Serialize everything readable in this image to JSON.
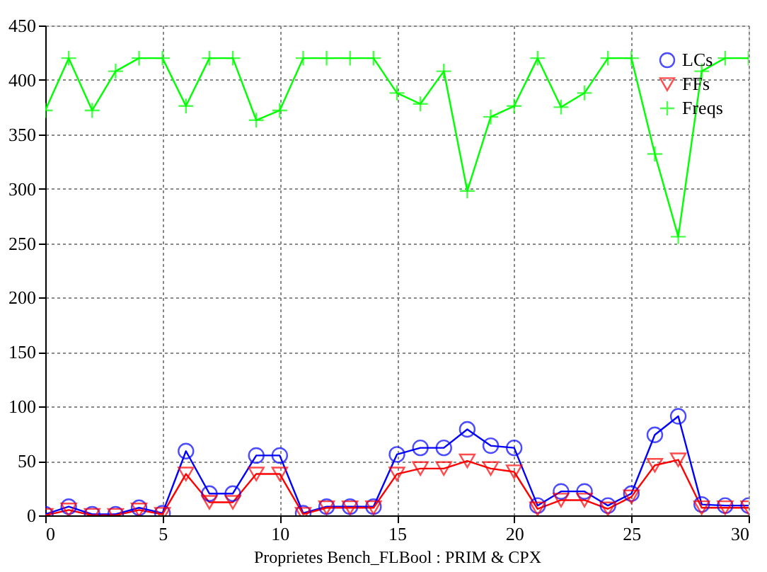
{
  "chart_data": {
    "type": "line",
    "xlabel": "Proprietes Bench_FLBool : PRIM & CPX",
    "x": [
      0,
      1,
      2,
      3,
      4,
      5,
      6,
      7,
      8,
      9,
      10,
      11,
      12,
      13,
      14,
      15,
      16,
      17,
      18,
      19,
      20,
      21,
      22,
      23,
      24,
      25,
      26,
      27,
      28,
      29,
      30
    ],
    "series": [
      {
        "name": "LCs",
        "color": "#0000ff",
        "marker": "circle",
        "values": [
          1,
          8,
          1,
          1,
          7,
          2,
          59,
          20,
          20,
          55,
          55,
          2,
          8,
          8,
          8,
          56,
          62,
          62,
          79,
          64,
          62,
          9,
          22,
          22,
          9,
          20,
          74,
          91,
          10,
          9,
          9
        ]
      },
      {
        "name": "FFs",
        "color": "#ff0000",
        "marker": "triangle",
        "values": [
          0,
          5,
          0,
          0,
          5,
          1,
          38,
          12,
          12,
          38,
          38,
          1,
          7,
          7,
          7,
          38,
          43,
          43,
          50,
          43,
          40,
          6,
          14,
          14,
          6,
          17,
          46,
          51,
          7,
          7,
          7
        ]
      },
      {
        "name": "Freqs",
        "color": "#00ff00",
        "marker": "cross",
        "values": [
          372,
          420,
          372,
          408,
          420,
          420,
          376,
          420,
          420,
          363,
          372,
          420,
          420,
          420,
          420,
          388,
          378,
          408,
          298,
          366,
          376,
          420,
          375,
          388,
          420,
          420,
          332,
          256,
          408,
          420,
          420
        ]
      }
    ],
    "xlim": [
      0,
      30
    ],
    "ylim": [
      0,
      450
    ],
    "xticks": [
      0,
      5,
      10,
      15,
      20,
      25,
      30
    ],
    "yticks": [
      0,
      50,
      100,
      150,
      200,
      250,
      300,
      350,
      400,
      450
    ],
    "grid": true,
    "legend": "top right",
    "line_style": "solid"
  }
}
